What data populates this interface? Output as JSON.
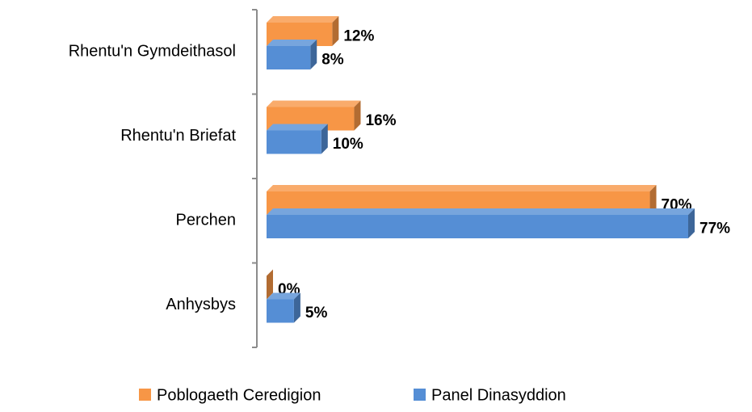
{
  "chart_data": {
    "type": "bar",
    "orientation": "horizontal",
    "three_d": true,
    "categories": [
      "Rhentu'n Gymdeithasol",
      "Rhentu'n Briefat",
      "Perchen",
      "Anhysbys"
    ],
    "series": [
      {
        "name": "Poblogaeth Ceredigion",
        "color": "#f79646",
        "values": [
          12,
          16,
          70,
          0
        ],
        "value_labels": [
          "12%",
          "16%",
          "70%",
          "0%"
        ]
      },
      {
        "name": "Panel Dinasyddion",
        "color": "#558ed5",
        "values": [
          8,
          10,
          77,
          5
        ],
        "value_labels": [
          "8%",
          "10%",
          "77%",
          "5%"
        ]
      }
    ],
    "legend": "bottom"
  }
}
